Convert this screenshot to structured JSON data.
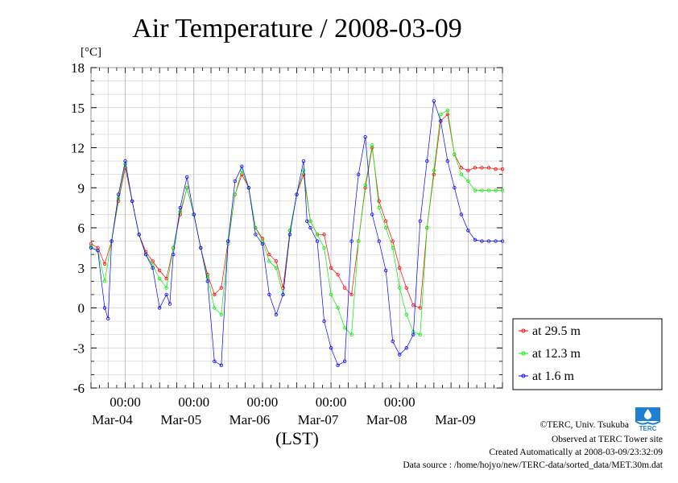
{
  "chart_data": {
    "type": "line",
    "title": "Air Temperature / 2008-03-09",
    "unit_label": "[°C]",
    "xlabel": "(LST)",
    "ylim": [
      -6,
      18
    ],
    "yticks": [
      18,
      15,
      12,
      9,
      6,
      3,
      0,
      -3,
      -6
    ],
    "xlim_days": [
      0,
      6
    ],
    "x_units": "days since 2008-03-03 12:00 LST",
    "x_tick_positions_days": [
      0.5,
      1.5,
      2.5,
      3.5,
      4.5,
      5.5
    ],
    "x_tick_time_labels": [
      "00:00",
      "00:00",
      "00:00",
      "00:00",
      "00:00",
      ""
    ],
    "x_tick_date_labels": [
      "Mar-04",
      "Mar-05",
      "Mar-06",
      "Mar-07",
      "Mar-08",
      "Mar-09"
    ],
    "grid": true,
    "legend_position": "right",
    "series": [
      {
        "name": "at 29.5 m",
        "color": "#ff0000",
        "x": [
          0.0,
          0.1,
          0.2,
          0.3,
          0.4,
          0.5,
          0.6,
          0.7,
          0.8,
          0.9,
          1.0,
          1.1,
          1.2,
          1.3,
          1.4,
          1.5,
          1.6,
          1.7,
          1.8,
          1.9,
          2.0,
          2.1,
          2.2,
          2.3,
          2.4,
          2.5,
          2.6,
          2.7,
          2.8,
          2.9,
          3.0,
          3.1,
          3.2,
          3.3,
          3.4,
          3.5,
          3.6,
          3.7,
          3.8,
          3.9,
          4.0,
          4.1,
          4.2,
          4.3,
          4.4,
          4.5,
          4.6,
          4.7,
          4.8,
          4.9,
          5.0,
          5.1,
          5.2,
          5.3,
          5.4,
          5.5,
          5.6,
          5.7,
          5.8,
          5.9,
          6.0
        ],
        "y": [
          4.8,
          4.5,
          3.3,
          5.0,
          8.0,
          10.5,
          8.0,
          5.5,
          4.2,
          3.5,
          2.8,
          2.2,
          4.5,
          7.0,
          9.0,
          7.0,
          4.5,
          2.5,
          1.0,
          1.5,
          5.0,
          8.5,
          10.0,
          9.0,
          6.0,
          5.2,
          4.0,
          3.5,
          1.5,
          5.8,
          8.5,
          10.0,
          6.5,
          5.5,
          5.5,
          3.0,
          2.5,
          1.5,
          1.0,
          5.0,
          9.0,
          12.0,
          8.0,
          6.5,
          5.0,
          3.0,
          1.5,
          0.2,
          0.0,
          6.0,
          10.0,
          14.0,
          14.5,
          11.5,
          10.5,
          10.3,
          10.5,
          10.5,
          10.5,
          10.4,
          10.4
        ]
      },
      {
        "name": "at 12.3 m",
        "color": "#00ee00",
        "x": [
          0.0,
          0.1,
          0.2,
          0.3,
          0.4,
          0.5,
          0.6,
          0.7,
          0.8,
          0.9,
          1.0,
          1.1,
          1.2,
          1.3,
          1.4,
          1.5,
          1.6,
          1.7,
          1.8,
          1.9,
          2.0,
          2.1,
          2.2,
          2.3,
          2.4,
          2.5,
          2.6,
          2.7,
          2.8,
          2.9,
          3.0,
          3.1,
          3.2,
          3.3,
          3.4,
          3.5,
          3.6,
          3.7,
          3.8,
          3.9,
          4.0,
          4.1,
          4.2,
          4.3,
          4.4,
          4.5,
          4.6,
          4.7,
          4.8,
          4.9,
          5.0,
          5.1,
          5.2,
          5.3,
          5.4,
          5.5,
          5.6,
          5.7,
          5.8,
          5.9,
          6.0
        ],
        "y": [
          4.6,
          4.3,
          2.0,
          5.0,
          8.2,
          10.8,
          8.0,
          5.5,
          4.0,
          3.2,
          2.2,
          1.5,
          4.5,
          7.2,
          9.0,
          7.0,
          4.5,
          2.3,
          0.0,
          -0.5,
          4.8,
          8.5,
          10.3,
          9.0,
          6.0,
          5.0,
          3.5,
          3.0,
          1.0,
          5.8,
          8.5,
          10.3,
          6.5,
          5.5,
          4.5,
          1.0,
          0.0,
          -1.5,
          -2.0,
          5.0,
          9.2,
          12.2,
          7.5,
          6.0,
          4.5,
          1.5,
          -0.5,
          -1.8,
          -2.0,
          6.0,
          10.3,
          14.5,
          14.8,
          11.5,
          10.0,
          9.5,
          8.8,
          8.8,
          8.8,
          8.8,
          8.8
        ]
      },
      {
        "name": "at 1.6 m",
        "color": "#0000ff",
        "x": [
          0.0,
          0.1,
          0.2,
          0.25,
          0.3,
          0.4,
          0.5,
          0.6,
          0.7,
          0.8,
          0.9,
          1.0,
          1.1,
          1.15,
          1.2,
          1.3,
          1.4,
          1.5,
          1.6,
          1.7,
          1.8,
          1.9,
          2.0,
          2.1,
          2.2,
          2.3,
          2.4,
          2.5,
          2.6,
          2.7,
          2.8,
          2.9,
          3.0,
          3.1,
          3.15,
          3.2,
          3.3,
          3.4,
          3.5,
          3.6,
          3.7,
          3.8,
          3.9,
          4.0,
          4.1,
          4.2,
          4.3,
          4.4,
          4.5,
          4.6,
          4.7,
          4.8,
          4.9,
          5.0,
          5.1,
          5.2,
          5.3,
          5.4,
          5.5,
          5.6,
          5.7,
          5.8,
          5.9,
          6.0
        ],
        "y": [
          4.5,
          4.3,
          0.0,
          -0.8,
          5.0,
          8.5,
          11.0,
          8.0,
          5.5,
          4.0,
          3.0,
          0.0,
          1.0,
          0.3,
          4.0,
          7.5,
          9.8,
          7.0,
          4.5,
          2.0,
          -4.0,
          -4.3,
          5.0,
          9.5,
          10.6,
          9.0,
          5.5,
          4.8,
          1.0,
          -0.5,
          1.0,
          5.5,
          8.5,
          11.0,
          6.5,
          6.0,
          5.0,
          -1.0,
          -3.0,
          -4.3,
          -4.0,
          5.0,
          10.0,
          12.8,
          7.0,
          5.0,
          2.8,
          -2.5,
          -3.5,
          -3.0,
          -2.0,
          6.5,
          11.0,
          15.5,
          14.0,
          11.0,
          9.0,
          7.0,
          5.8,
          5.1,
          5.0,
          5.0,
          5.0,
          5.0
        ]
      }
    ]
  },
  "credits": {
    "copyright": "©TERC, Univ. Tsukuba",
    "site": "Observed at TERC Tower site",
    "created": "Created Automatically at 2008-03-09/23:32:09",
    "source": "Data source : /home/hojyo/new/TERC-data/sorted_data/MET.30m.dat"
  },
  "logo": {
    "text": "TERC",
    "color": "#1f7fd0"
  }
}
